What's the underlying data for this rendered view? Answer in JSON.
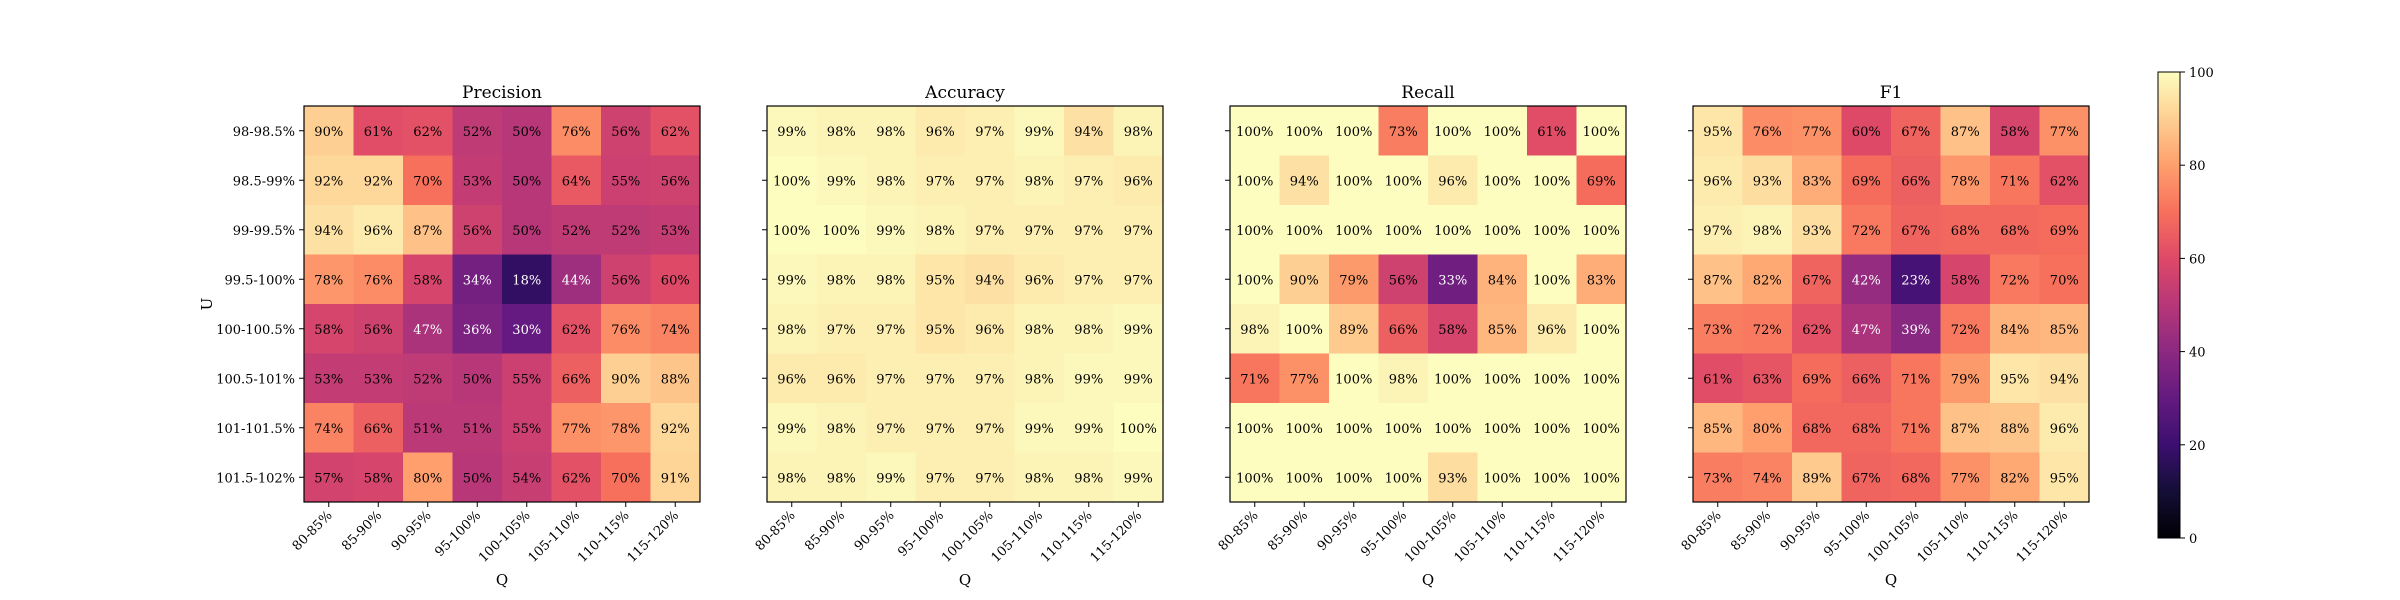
{
  "chart_data": {
    "type": "heatmap",
    "ylabel": "U",
    "xlabel": "Q",
    "rows": [
      "98-98.5%",
      "98.5-99%",
      "99-99.5%",
      "99.5-100%",
      "100-100.5%",
      "100.5-101%",
      "101-101.5%",
      "101.5-102%"
    ],
    "cols": [
      "80-85%",
      "85-90%",
      "90-95%",
      "95-100%",
      "100-105%",
      "105-110%",
      "110-115%",
      "115-120%"
    ],
    "colormap": "magma",
    "vmin": 0,
    "vmax": 100,
    "colorbar_ticks": [
      "0",
      "20",
      "40",
      "60",
      "80",
      "100"
    ],
    "panels": [
      {
        "title": "Precision",
        "values": [
          [
            90,
            61,
            62,
            52,
            50,
            76,
            56,
            62
          ],
          [
            92,
            92,
            70,
            53,
            50,
            64,
            55,
            56
          ],
          [
            94,
            96,
            87,
            56,
            50,
            52,
            52,
            53
          ],
          [
            78,
            76,
            58,
            34,
            18,
            44,
            56,
            60
          ],
          [
            58,
            56,
            47,
            36,
            30,
            62,
            76,
            74
          ],
          [
            53,
            53,
            52,
            50,
            55,
            66,
            90,
            88
          ],
          [
            74,
            66,
            51,
            51,
            55,
            77,
            78,
            92
          ],
          [
            57,
            58,
            80,
            50,
            54,
            62,
            70,
            91
          ]
        ]
      },
      {
        "title": "Accuracy",
        "values": [
          [
            99,
            98,
            98,
            96,
            97,
            99,
            94,
            98
          ],
          [
            100,
            99,
            98,
            97,
            97,
            98,
            97,
            96
          ],
          [
            100,
            100,
            99,
            98,
            97,
            97,
            97,
            97
          ],
          [
            99,
            98,
            98,
            95,
            94,
            96,
            97,
            97
          ],
          [
            98,
            97,
            97,
            95,
            96,
            98,
            98,
            99
          ],
          [
            96,
            96,
            97,
            97,
            97,
            98,
            99,
            99
          ],
          [
            99,
            98,
            97,
            97,
            97,
            99,
            99,
            100
          ],
          [
            98,
            98,
            99,
            97,
            97,
            98,
            98,
            99
          ]
        ]
      },
      {
        "title": "Recall",
        "values": [
          [
            100,
            100,
            100,
            73,
            100,
            100,
            61,
            100
          ],
          [
            100,
            94,
            100,
            100,
            96,
            100,
            100,
            69
          ],
          [
            100,
            100,
            100,
            100,
            100,
            100,
            100,
            100
          ],
          [
            100,
            90,
            79,
            56,
            33,
            84,
            100,
            83
          ],
          [
            98,
            100,
            89,
            66,
            58,
            85,
            96,
            100
          ],
          [
            71,
            77,
            100,
            98,
            100,
            100,
            100,
            100
          ],
          [
            100,
            100,
            100,
            100,
            100,
            100,
            100,
            100
          ],
          [
            100,
            100,
            100,
            100,
            93,
            100,
            100,
            100
          ]
        ]
      },
      {
        "title": "F1",
        "values": [
          [
            95,
            76,
            77,
            60,
            67,
            87,
            58,
            77
          ],
          [
            96,
            93,
            83,
            69,
            66,
            78,
            71,
            62
          ],
          [
            97,
            98,
            93,
            72,
            67,
            68,
            68,
            69
          ],
          [
            87,
            82,
            67,
            42,
            23,
            58,
            72,
            70
          ],
          [
            73,
            72,
            62,
            47,
            39,
            72,
            84,
            85
          ],
          [
            61,
            63,
            69,
            66,
            71,
            79,
            95,
            94
          ],
          [
            85,
            80,
            68,
            68,
            71,
            87,
            88,
            96
          ],
          [
            73,
            74,
            89,
            67,
            68,
            77,
            82,
            95
          ]
        ]
      }
    ]
  }
}
